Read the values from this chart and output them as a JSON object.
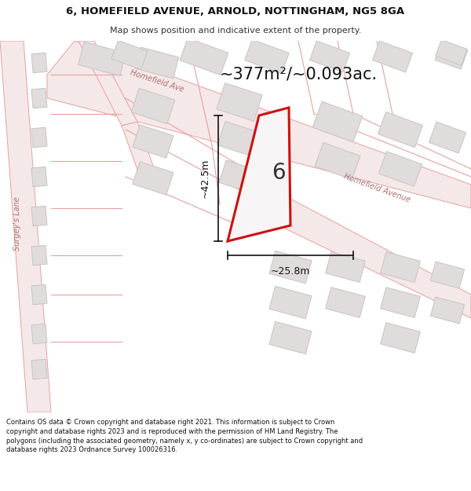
{
  "title_line1": "6, HOMEFIELD AVENUE, ARNOLD, NOTTINGHAM, NG5 8GA",
  "title_line2": "Map shows position and indicative extent of the property.",
  "area_text": "~377m²/~0.093ac.",
  "property_number": "6",
  "dim_width": "~25.8m",
  "dim_height": "~42.5m",
  "footer_text": "Contains OS data © Crown copyright and database right 2021. This information is subject to Crown copyright and database rights 2023 and is reproduced with the permission of HM Land Registry. The polygons (including the associated geometry, namely x, y co-ordinates) are subject to Crown copyright and database rights 2023 Ordnance Survey 100026316.",
  "map_bg": "#f7f5f5",
  "road_line_color": "#e8a0a0",
  "road_fill_color": "#f5e8e8",
  "property_fill": "#f7f5f5",
  "property_outline": "#cc1111",
  "building_color": "#e0dcdc",
  "building_edge": "#c8c4c4",
  "street_label_color": "#b07070",
  "ann_color": "#111111",
  "title_bg": "#ffffff",
  "footer_bg": "#ffffff",
  "title_fontsize": 9.5,
  "subtitle_fontsize": 8,
  "area_fontsize": 15,
  "prop_num_fontsize": 20,
  "dim_fontsize": 9,
  "street_fontsize": 7,
  "footer_fontsize": 6.0
}
